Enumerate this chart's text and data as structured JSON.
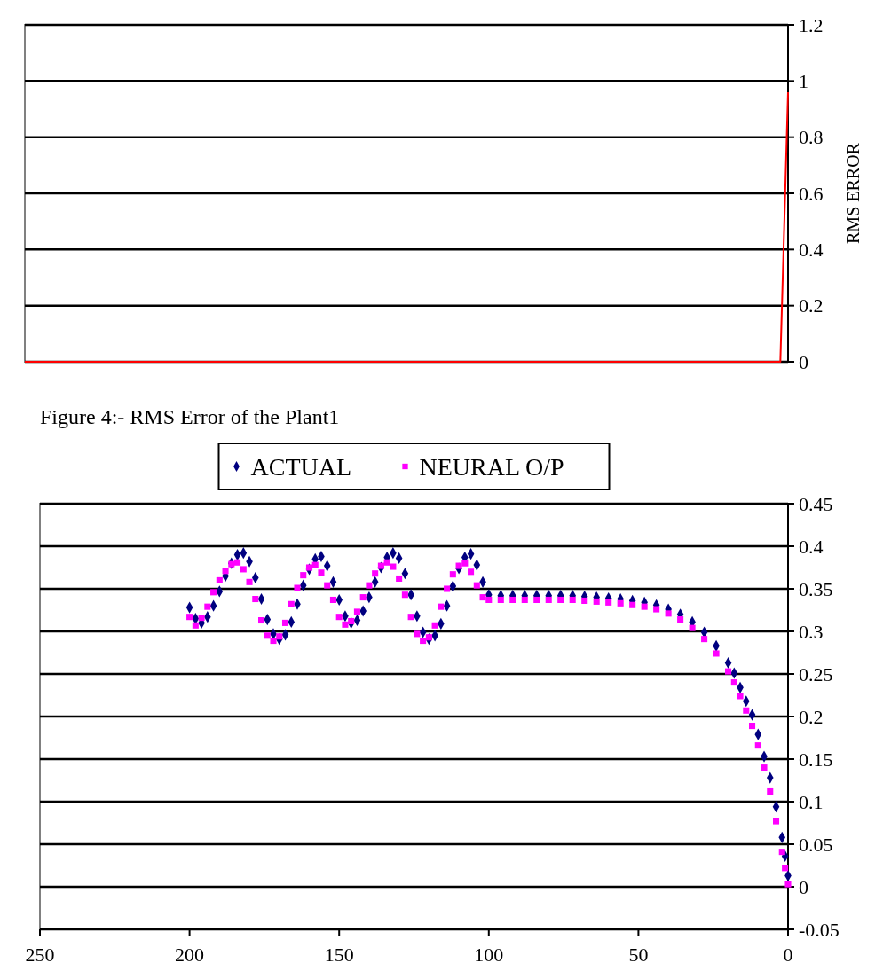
{
  "chart_data": [
    {
      "type": "line",
      "ylabel": "RMS ERROR",
      "categories": [
        null,
        null,
        null,
        null,
        null,
        null,
        null,
        null,
        null,
        null,
        null,
        null,
        null,
        null,
        null,
        null,
        null,
        null,
        null,
        null,
        null,
        null,
        null,
        null,
        null,
        null,
        null,
        null,
        null,
        null,
        null,
        null,
        null,
        null,
        null,
        null,
        null,
        null,
        null,
        null,
        null,
        null,
        null,
        null,
        null,
        null,
        null,
        null,
        null,
        null,
        null,
        null,
        null,
        null,
        null,
        null,
        null,
        null,
        null,
        null,
        null,
        null,
        null,
        null,
        null,
        null,
        null,
        null,
        null,
        null,
        null,
        null,
        null,
        null,
        null,
        null,
        null,
        null,
        null,
        null,
        null,
        null,
        null,
        null,
        null,
        null,
        null,
        null,
        null,
        null,
        null,
        null,
        null,
        null,
        null,
        null,
        null,
        null,
        null,
        null
      ],
      "series": [
        {
          "color": "#ff0000",
          "values": [
            0,
            0,
            0,
            0,
            0,
            0,
            0,
            0,
            0,
            0,
            0,
            0,
            0,
            0,
            0,
            0,
            0,
            0,
            0,
            0,
            0,
            0,
            0,
            0,
            0,
            0,
            0,
            0,
            0,
            0,
            0,
            0,
            0,
            0,
            0,
            0,
            0,
            0,
            0,
            0,
            0,
            0,
            0,
            0,
            0,
            0,
            0,
            0,
            0,
            0,
            0,
            0,
            0,
            0,
            0,
            0,
            0,
            0,
            0,
            0,
            0,
            0,
            0,
            0,
            0,
            0,
            0,
            0,
            0,
            0,
            0,
            0,
            0,
            0,
            0,
            0,
            0,
            0,
            0,
            0,
            0,
            0,
            0,
            0,
            0,
            0,
            0,
            0,
            0,
            0,
            0,
            0,
            0,
            0,
            0,
            0,
            0,
            0,
            0,
            0.96
          ]
        }
      ],
      "ylim": [
        0,
        1.2
      ],
      "yticks": [
        0,
        0.2,
        0.4,
        0.6,
        0.8,
        1,
        1.2
      ],
      "grid": "y",
      "tick_labels": "y",
      "legend": false
    },
    {
      "type": "scatter",
      "annotations": [
        "Figure 4:- RMS Error of the Plant1"
      ],
      "x": [
        200,
        198,
        196,
        194,
        192,
        190,
        188,
        186,
        184,
        182,
        180,
        178,
        176,
        174,
        172,
        170,
        168,
        166,
        164,
        162,
        160,
        158,
        156,
        154,
        152,
        150,
        148,
        146,
        144,
        142,
        140,
        138,
        136,
        134,
        132,
        130,
        128,
        126,
        124,
        122,
        120,
        118,
        116,
        114,
        112,
        110,
        108,
        106,
        104,
        102,
        100,
        96,
        92,
        88,
        84,
        80,
        76,
        72,
        68,
        64,
        60,
        56,
        52,
        48,
        44,
        40,
        36,
        32,
        28,
        24,
        20,
        18,
        16,
        14,
        12,
        10,
        8,
        6,
        4,
        2,
        1,
        0
      ],
      "series": [
        {
          "name": "ACTUAL",
          "color": "#000080",
          "marker": "diamond",
          "values": [
            0.328,
            0.315,
            0.31,
            0.317,
            0.33,
            0.347,
            0.365,
            0.38,
            0.39,
            0.392,
            0.382,
            0.363,
            0.338,
            0.314,
            0.297,
            0.291,
            0.296,
            0.311,
            0.332,
            0.354,
            0.373,
            0.385,
            0.388,
            0.377,
            0.358,
            0.337,
            0.318,
            0.31,
            0.313,
            0.324,
            0.34,
            0.358,
            0.375,
            0.387,
            0.392,
            0.386,
            0.368,
            0.343,
            0.318,
            0.299,
            0.291,
            0.295,
            0.309,
            0.33,
            0.353,
            0.374,
            0.387,
            0.391,
            0.378,
            0.358,
            0.343,
            0.342,
            0.342,
            0.342,
            0.342,
            0.342,
            0.342,
            0.342,
            0.341,
            0.34,
            0.339,
            0.338,
            0.336,
            0.334,
            0.331,
            0.326,
            0.32,
            0.311,
            0.299,
            0.283,
            0.263,
            0.251,
            0.234,
            0.218,
            0.202,
            0.179,
            0.153,
            0.128,
            0.094,
            0.058,
            0.036,
            0.013
          ]
        },
        {
          "name": "NEURAL O/P",
          "color": "#ff00ff",
          "marker": "square",
          "values": [
            0.317,
            0.307,
            0.316,
            0.329,
            0.346,
            0.36,
            0.371,
            0.379,
            0.381,
            0.373,
            0.358,
            0.338,
            0.313,
            0.295,
            0.289,
            0.294,
            0.31,
            0.332,
            0.351,
            0.366,
            0.375,
            0.378,
            0.369,
            0.354,
            0.337,
            0.317,
            0.308,
            0.312,
            0.323,
            0.34,
            0.354,
            0.368,
            0.377,
            0.381,
            0.376,
            0.362,
            0.343,
            0.317,
            0.297,
            0.289,
            0.293,
            0.307,
            0.329,
            0.35,
            0.367,
            0.377,
            0.38,
            0.37,
            0.354,
            0.34,
            0.337,
            0.337,
            0.337,
            0.337,
            0.337,
            0.337,
            0.337,
            0.337,
            0.336,
            0.335,
            0.334,
            0.333,
            0.331,
            0.329,
            0.326,
            0.321,
            0.314,
            0.304,
            0.291,
            0.274,
            0.253,
            0.24,
            0.224,
            0.207,
            0.189,
            0.166,
            0.14,
            0.112,
            0.077,
            0.041,
            0.022,
            0.003
          ]
        }
      ],
      "xlim": [
        250,
        0
      ],
      "xticks": [
        250,
        200,
        150,
        100,
        50,
        0
      ],
      "ylim": [
        -0.05,
        0.45
      ],
      "yticks": [
        -0.05,
        0,
        0.05,
        0.1,
        0.15,
        0.2,
        0.25,
        0.3,
        0.35,
        0.4,
        0.45
      ],
      "grid": "y",
      "legend": "top"
    }
  ]
}
